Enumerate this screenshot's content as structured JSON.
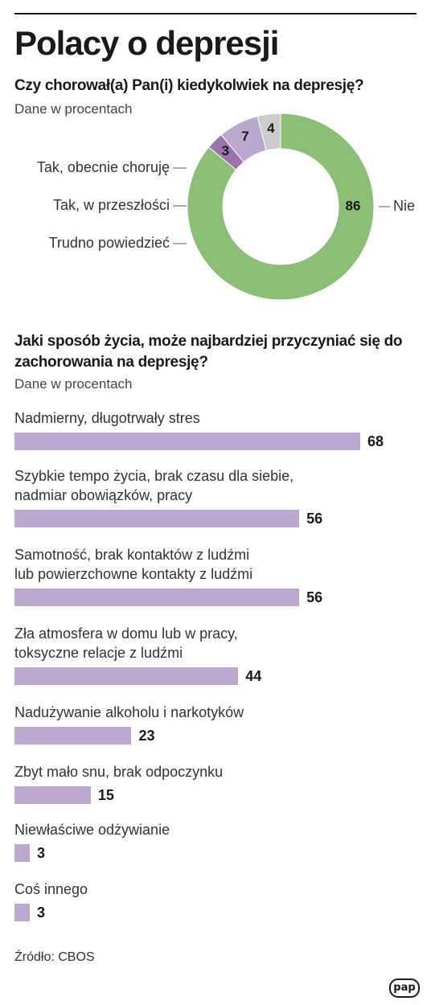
{
  "header": {
    "title": "Polacy o depresji"
  },
  "chart1": {
    "question": "Czy chorował(a) Pan(i) kiedykolwiek na depresję?",
    "unit": "Dane w procentach"
  },
  "chart2": {
    "question": "Jaki sposób życia, może najbardziej przyczyniać się do zachorowania na depresję?",
    "unit": "Dane w procentach"
  },
  "footer": {
    "source": "Źródło: CBOS",
    "logo_text": "pap"
  },
  "chart_data": [
    {
      "type": "pie",
      "style": "donut",
      "title": "Czy chorował(a) Pan(i) kiedykolwiek na depresję?",
      "slices": [
        {
          "label": "Nie",
          "value": 86,
          "color": "#8bbf76"
        },
        {
          "label": "Tak, obecnie choruję",
          "value": 3,
          "color": "#9e72ad"
        },
        {
          "label": "Tak, w przeszłości",
          "value": 7,
          "color": "#bca7cf"
        },
        {
          "label": "Trudno powiedzieć",
          "value": 4,
          "color": "#cccccc"
        }
      ]
    },
    {
      "type": "bar",
      "orientation": "horizontal",
      "title": "Jaki sposób życia, może najbardziej przyczyniać się do zachorowania na depresję?",
      "bar_color": "#bca7cf",
      "xlim": [
        0,
        68
      ],
      "categories": [
        [
          "Nadmierny, długotrwały stres"
        ],
        [
          "Szybkie tempo życia, brak czasu dla siebie,",
          "nadmiar obowiązków, pracy"
        ],
        [
          "Samotność, brak kontaktów z ludźmi",
          "lub powierzchowne kontakty z ludźmi"
        ],
        [
          "Zła atmosfera w domu lub w pracy,",
          "toksyczne relacje z ludźmi"
        ],
        [
          "Nadużywanie alkoholu i narkotyków"
        ],
        [
          "Zbyt mało snu, brak odpoczynku"
        ],
        [
          "Niewłaściwe odżywianie"
        ],
        [
          "Coś innego"
        ]
      ],
      "values": [
        68,
        56,
        56,
        44,
        23,
        15,
        3,
        3
      ]
    }
  ]
}
